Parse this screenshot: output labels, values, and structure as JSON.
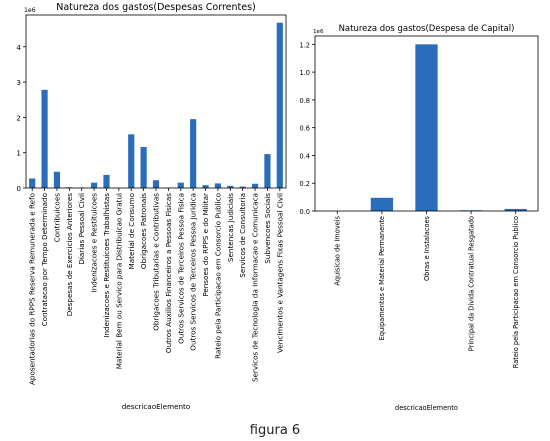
{
  "chart_data": [
    {
      "type": "bar",
      "title": "Natureza dos gastos(Despesas Correntes)",
      "xlabel": "descricaoElemento",
      "ylabel": "",
      "offset_label": "1e6",
      "ylim": [
        0,
        4900000
      ],
      "yticks": [
        0,
        1,
        2,
        3,
        4
      ],
      "bar_color": "#2a6ebb",
      "categories": [
        "Aposentadorias do RPPS Reserva Remunerada e Refo",
        "Contratacao por Tempo Determinado",
        "Contribuicoes",
        "Despesas de Exercicios Anteriores",
        "Diarias Pessoal Civil",
        "Indenizacoes e Restituicoes",
        "Indenizacoes e Restituicoes Trabalhistas",
        "Material Bem ou Servico para Distribuicao Gratui",
        "Material de Consumo",
        "Obrigacoes Patronais",
        "Obrigacoes Tributarias e Contributivas",
        "Outros Auxilios Financeiros a Pessoas Fisicas",
        "Outros Servicos de Terceiros Pessoa Fisica",
        "Outros Servicos de Terceiros Pessoa Juridica",
        "Pensoes do RPPS e do Militar",
        "Rateio pela Participacao em Consorcio Publico",
        "Sentencas Judiciais",
        "Servicos de Consultoria",
        "Servicos de Tecnologia da Informacao e Comunicaca",
        "Subvencoes Sociais",
        "Vencimentos e Vantagens Fixas Pessoal Civil"
      ],
      "values": [
        270000,
        2780000,
        460000,
        20000,
        15000,
        150000,
        370000,
        0,
        1520000,
        1160000,
        220000,
        10000,
        150000,
        1950000,
        80000,
        130000,
        60000,
        40000,
        120000,
        960000,
        4680000
      ]
    },
    {
      "type": "bar",
      "title": "Natureza dos gastos(Despesa de Capital)",
      "xlabel": "descricaoElemento",
      "ylabel": "",
      "offset_label": "1e6",
      "ylim": [
        0,
        1260000
      ],
      "yticks": [
        "0.0",
        "0.2",
        "0.4",
        "0.6",
        "0.8",
        "1.0",
        "1.2"
      ],
      "bar_color": "#2a6ebb",
      "categories": [
        "Aquisicao de Imoveis",
        "Equipamentos e Material Permanente",
        "Obras e Instalacoes",
        "Principal da Divida Contratual Resgatado",
        "Rateio pela Participacao em Consorcio Publico"
      ],
      "values": [
        0,
        95000,
        1200000,
        5000,
        15000
      ]
    }
  ],
  "caption": "figura 6"
}
